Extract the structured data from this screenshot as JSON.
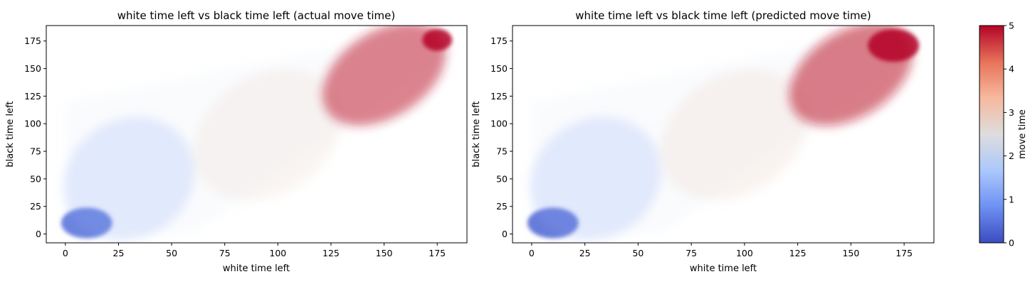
{
  "chart_data": [
    {
      "type": "scatter",
      "title": "white time left vs black time left (actual move time)",
      "xlabel": "white time left",
      "ylabel": "black time left",
      "xlim": [
        -9,
        189
      ],
      "ylim": [
        -8,
        189
      ],
      "xticks": [
        0,
        25,
        50,
        75,
        100,
        125,
        150,
        175
      ],
      "yticks": [
        0,
        25,
        50,
        75,
        100,
        125,
        150,
        175
      ],
      "color_variable": "move time",
      "colormap": "coolwarm",
      "point_opacity": "very low (dense overplotting)",
      "density_regions": [
        {
          "x": [
            0,
            20
          ],
          "y": [
            0,
            20
          ],
          "move_time": 0.4,
          "density": "very high"
        },
        {
          "x": [
            0,
            60
          ],
          "y": [
            0,
            100
          ],
          "move_time": 1.2,
          "density": "medium"
        },
        {
          "x": [
            60,
            130
          ],
          "y": [
            40,
            140
          ],
          "move_time": 2.8,
          "density": "medium"
        },
        {
          "x": [
            120,
            180
          ],
          "y": [
            110,
            180
          ],
          "move_time": 4.8,
          "density": "high"
        },
        {
          "x": [
            170,
            180
          ],
          "y": [
            170,
            182
          ],
          "move_time": 5,
          "density": "very high"
        }
      ]
    },
    {
      "type": "scatter",
      "title": "white time left vs black time left (predicted move time)",
      "xlabel": "white time left",
      "ylabel": "black time left",
      "xlim": [
        -9,
        189
      ],
      "ylim": [
        -8,
        189
      ],
      "xticks": [
        0,
        25,
        50,
        75,
        100,
        125,
        150,
        175
      ],
      "yticks": [
        0,
        25,
        50,
        75,
        100,
        125,
        150,
        175
      ],
      "color_variable": "move time",
      "colormap": "coolwarm",
      "point_opacity": "very low (dense overplotting)",
      "density_regions": [
        {
          "x": [
            0,
            20
          ],
          "y": [
            0,
            20
          ],
          "move_time": 0.3,
          "density": "very high"
        },
        {
          "x": [
            0,
            60
          ],
          "y": [
            0,
            100
          ],
          "move_time": 1.2,
          "density": "medium"
        },
        {
          "x": [
            60,
            130
          ],
          "y": [
            40,
            140
          ],
          "move_time": 2.9,
          "density": "medium"
        },
        {
          "x": [
            120,
            180
          ],
          "y": [
            110,
            180
          ],
          "move_time": 4.9,
          "density": "high"
        },
        {
          "x": [
            160,
            180
          ],
          "y": [
            160,
            182
          ],
          "move_time": 5,
          "density": "very high"
        }
      ]
    }
  ],
  "colorbar": {
    "label": "move time",
    "range": [
      0,
      5
    ],
    "ticks": [
      0,
      1,
      2,
      3,
      4,
      5
    ],
    "colors": [
      "#3b4cc0",
      "#6f92f3",
      "#aac7fd",
      "#dddddd",
      "#f7b89c",
      "#e7745b",
      "#b40426"
    ]
  }
}
